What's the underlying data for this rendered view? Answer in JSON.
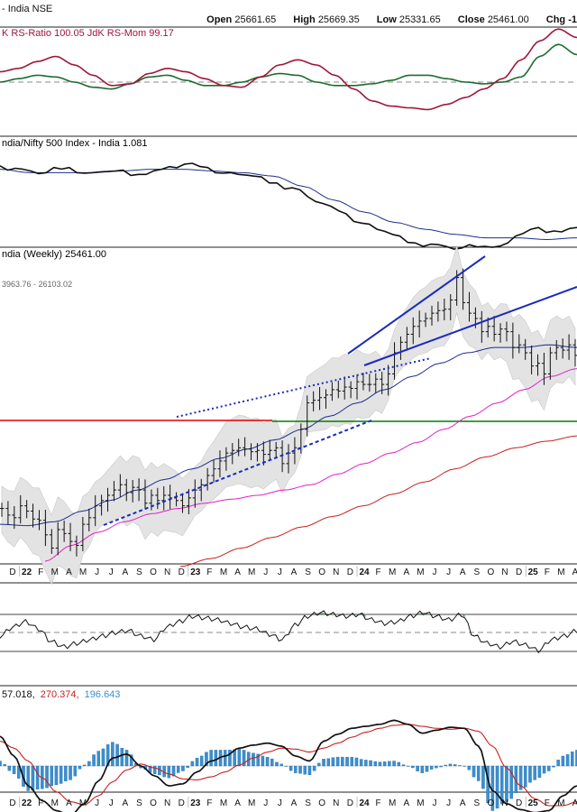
{
  "header": {
    "symbol": "- India NSE",
    "open_label": "Open",
    "open": "25661.65",
    "high_label": "High",
    "high": "25669.35",
    "low_label": "Low",
    "low": "25331.65",
    "close_label": "Close",
    "close": "25461.00",
    "chg_label": "Chg -1"
  },
  "colors": {
    "rs_ratio": "#a0163a",
    "rs_mom": "#1d6b2f",
    "line": "#111111",
    "blue": "#1a2bbd",
    "ma50": "#1d2e8c",
    "ma_magenta": "#e020c8",
    "ma_red": "#c82020",
    "support_red": "#e00000",
    "support_green": "#008000",
    "bands": "#e3e3e3",
    "hist": "#3a8fd0",
    "grid": "#888888"
  },
  "chart_data": [
    {
      "type": "line",
      "legend": "K RS-Ratio 100.05 JdK RS-Mom 99.17",
      "series": [
        {
          "name": "JdK RS-Ratio",
          "values": [
            100.6,
            100.8,
            101.2,
            101.5,
            101.0,
            100.4,
            99.8,
            99.9,
            100.5,
            100.8,
            100.6,
            100.2,
            99.8,
            99.7,
            100.3,
            101.0,
            101.3,
            101.0,
            100.4,
            99.6,
            98.9,
            98.6,
            98.5,
            98.4,
            98.7,
            99.1,
            99.6,
            100.2,
            101.3,
            102.4,
            103.1,
            102.6
          ]
        },
        {
          "name": "JdK RS-Mom",
          "values": [
            100.0,
            100.2,
            100.4,
            100.3,
            100.0,
            99.7,
            99.6,
            99.9,
            100.3,
            100.4,
            100.1,
            99.8,
            99.8,
            100.0,
            100.3,
            100.5,
            100.4,
            100.0,
            99.8,
            99.8,
            99.9,
            100.1,
            100.4,
            100.4,
            100.2,
            100.0,
            99.9,
            100.0,
            100.3,
            101.5,
            102.2,
            101.6
          ]
        }
      ]
    },
    {
      "type": "line",
      "legend": "ndia/Nifty 500 Index - India 1.081",
      "series": [
        {
          "name": "Ratio",
          "values": [
            1.118,
            1.116,
            1.114,
            1.117,
            1.114,
            1.115,
            1.113,
            1.116,
            1.119,
            1.117,
            1.114,
            1.112,
            1.108,
            1.104,
            1.096,
            1.09,
            1.084,
            1.078,
            1.073,
            1.072,
            1.07,
            1.071,
            1.073,
            1.081,
            1.08,
            1.082
          ]
        },
        {
          "name": "Average",
          "values": [
            1.116,
            1.114,
            1.114,
            1.114,
            1.115,
            1.116,
            1.116,
            1.115,
            1.114,
            1.112,
            1.106,
            1.098,
            1.091,
            1.085,
            1.081,
            1.078,
            1.076,
            1.076,
            1.075,
            1.076
          ]
        }
      ]
    },
    {
      "type": "line",
      "legend": "ndia (Weekly) 25461.00",
      "band_values": "3963.76 - 26103.02",
      "ylim": [
        15300,
        27300
      ],
      "x_labels": [
        "D",
        "22",
        "F",
        "M",
        "A",
        "M",
        "J",
        "J",
        "A",
        "S",
        "O",
        "N",
        "D",
        "23",
        "F",
        "M",
        "A",
        "M",
        "J",
        "J",
        "A",
        "S",
        "O",
        "N",
        "D",
        "24",
        "F",
        "M",
        "A",
        "M",
        "J",
        "J",
        "A",
        "S",
        "O",
        "N",
        "D",
        "25",
        "F",
        "M",
        "A"
      ],
      "price": [
        17400,
        17150,
        17050,
        17500,
        17300,
        17000,
        16950,
        16400,
        15900,
        16600,
        16450,
        16150,
        16000,
        16800,
        17050,
        17500,
        17700,
        17900,
        18100,
        18300,
        18000,
        18200,
        18100,
        17600,
        17900,
        17700,
        17900,
        17800,
        17700,
        17500,
        17800,
        18100,
        18300,
        18650,
        18900,
        19200,
        19500,
        19600,
        19700,
        19650,
        19550,
        19600,
        19450,
        19600,
        19700,
        19100,
        19500,
        19700,
        20400,
        21400,
        21500,
        21600,
        21700,
        21900,
        21850,
        22000,
        21950,
        22200,
        22100,
        22100,
        22300,
        22100,
        22500,
        23300,
        23700,
        24000,
        24300,
        24500,
        24600,
        24800,
        24900,
        24950,
        25300,
        26150,
        25200,
        24800,
        24600,
        24100,
        24300,
        24000,
        24200,
        24100,
        23500,
        23600,
        23300,
        22800,
        22900,
        22500,
        23300,
        23500,
        23400,
        23600,
        23200
      ],
      "series": [
        {
          "name": "MA 50",
          "values": [
            16800,
            16750,
            16900,
            17300,
            17700,
            18100,
            18500,
            18900,
            19300,
            19650,
            20000,
            20400,
            20900,
            21400,
            21900,
            22400,
            22900,
            23300,
            23500,
            23500,
            23600,
            23500
          ]
        },
        {
          "name": "MA magenta",
          "values": [
            15400,
            16000,
            16500,
            16900,
            17200,
            17400,
            17600,
            17750,
            17900,
            18100,
            18300,
            18700,
            19100,
            19500,
            19900,
            20400,
            20900,
            21400,
            21900,
            22400,
            22700
          ]
        },
        {
          "name": "MA red",
          "values": [
            15200,
            15500,
            15900,
            16300,
            16700,
            17100,
            17500,
            17950,
            18400,
            18900,
            19350,
            19700,
            19950,
            20150
          ]
        }
      ],
      "support_levels": [
        18250,
        18300
      ]
    },
    {
      "type": "line",
      "series": [
        {
          "name": "Oscillator",
          "values": [
            -0.2,
            0.3,
            0.6,
            0.2,
            -0.5,
            -0.8,
            -0.6,
            -0.4,
            -0.2,
            0.0,
            0.1,
            -0.2,
            -0.4,
            0.3,
            0.6,
            0.9,
            0.8,
            0.7,
            0.5,
            0.3,
            0.2,
            -0.1,
            -0.4,
            0.4,
            0.9,
            1.1,
            1.0,
            0.9,
            1.0,
            0.7,
            0.5,
            0.6,
            0.9,
            1.1,
            0.9,
            0.7,
            1.0,
            -0.2,
            -0.6,
            -0.8,
            -0.5,
            -0.7,
            -1.0,
            -0.4,
            -0.2,
            0.1
          ]
        }
      ]
    },
    {
      "type": "line",
      "legend_parts": [
        "57.018,",
        "270.374,",
        "196.643"
      ],
      "x_labels": [
        "D",
        "22",
        "F",
        "M",
        "A",
        "M",
        "J",
        "J",
        "A",
        "S",
        "O",
        "N",
        "D",
        "23",
        "F",
        "M",
        "A",
        "M",
        "J",
        "J",
        "A",
        "S",
        "O",
        "N",
        "D",
        "24",
        "F",
        "M",
        "A",
        "M",
        "J",
        "J",
        "A",
        "S",
        "O",
        "N",
        "D",
        "25",
        "F",
        "M",
        "A"
      ],
      "series": [
        {
          "name": "MACD",
          "values": [
            300,
            100,
            -200,
            -350,
            -450,
            -500,
            -380,
            -150,
            80,
            120,
            0,
            -100,
            -200,
            -180,
            -60,
            50,
            100,
            180,
            210,
            230,
            200,
            100,
            50,
            250,
            320,
            380,
            400,
            420,
            460,
            420,
            330,
            360,
            390,
            380,
            200,
            -250,
            -380,
            -440,
            -470,
            -450,
            -300,
            -200
          ]
        },
        {
          "name": "Signal",
          "values": [
            250,
            180,
            50,
            -120,
            -260,
            -360,
            -390,
            -300,
            -160,
            -40,
            20,
            -20,
            -80,
            -130,
            -140,
            -110,
            -60,
            10,
            80,
            140,
            180,
            170,
            140,
            180,
            230,
            290,
            340,
            380,
            410,
            420,
            400,
            380,
            370,
            380,
            350,
            200,
            -20,
            -200,
            -330,
            -400,
            -400,
            -360
          ]
        },
        {
          "name": "Histogram",
          "values": [
            50,
            -80,
            -250,
            -230,
            -190,
            -140,
            10,
            150,
            240,
            160,
            -20,
            -80,
            -120,
            -50,
            80,
            160,
            160,
            170,
            130,
            90,
            20,
            -70,
            -90,
            70,
            90,
            90,
            60,
            40,
            50,
            0,
            -70,
            -20,
            20,
            0,
            -150,
            -450,
            -360,
            -240,
            -140,
            -50,
            100,
            160
          ]
        }
      ]
    }
  ]
}
